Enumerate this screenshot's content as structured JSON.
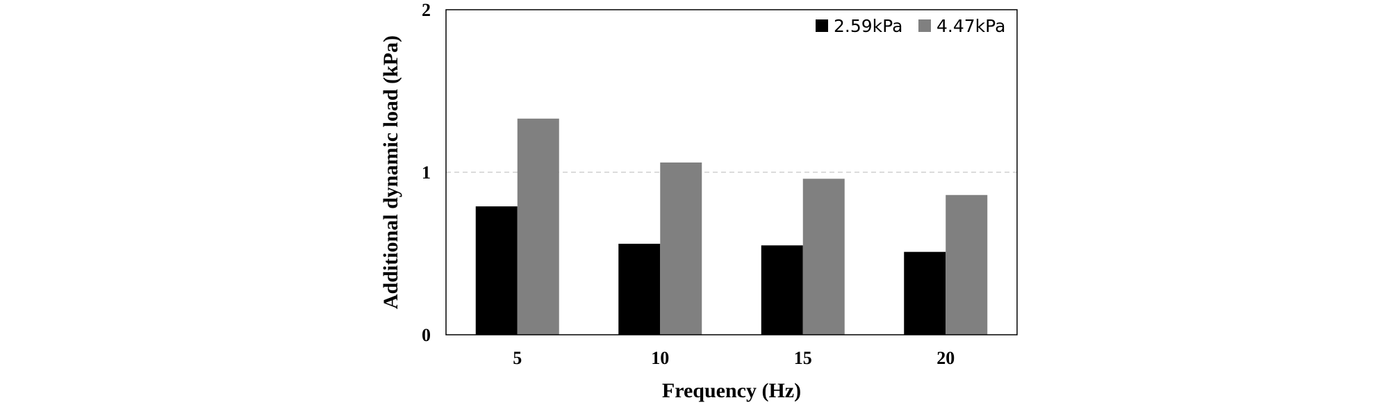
{
  "chart_data": {
    "type": "bar",
    "title": "",
    "xlabel": "Frequency (Hz)",
    "ylabel": "Additional dynamic load (kPa)",
    "categories": [
      "5",
      "10",
      "15",
      "20"
    ],
    "series": [
      {
        "name": "2.59kPa",
        "color": "#000000",
        "values": [
          0.79,
          0.56,
          0.55,
          0.51
        ]
      },
      {
        "name": "4.47kPa",
        "color": "#808080",
        "values": [
          1.33,
          1.06,
          0.96,
          0.86
        ]
      }
    ],
    "ylim": [
      0,
      2
    ],
    "yticks": [
      "0",
      "1",
      "2"
    ],
    "gridlines": [
      1
    ],
    "grid": "dashed horizontal at 1",
    "legend_position": "top-right"
  }
}
